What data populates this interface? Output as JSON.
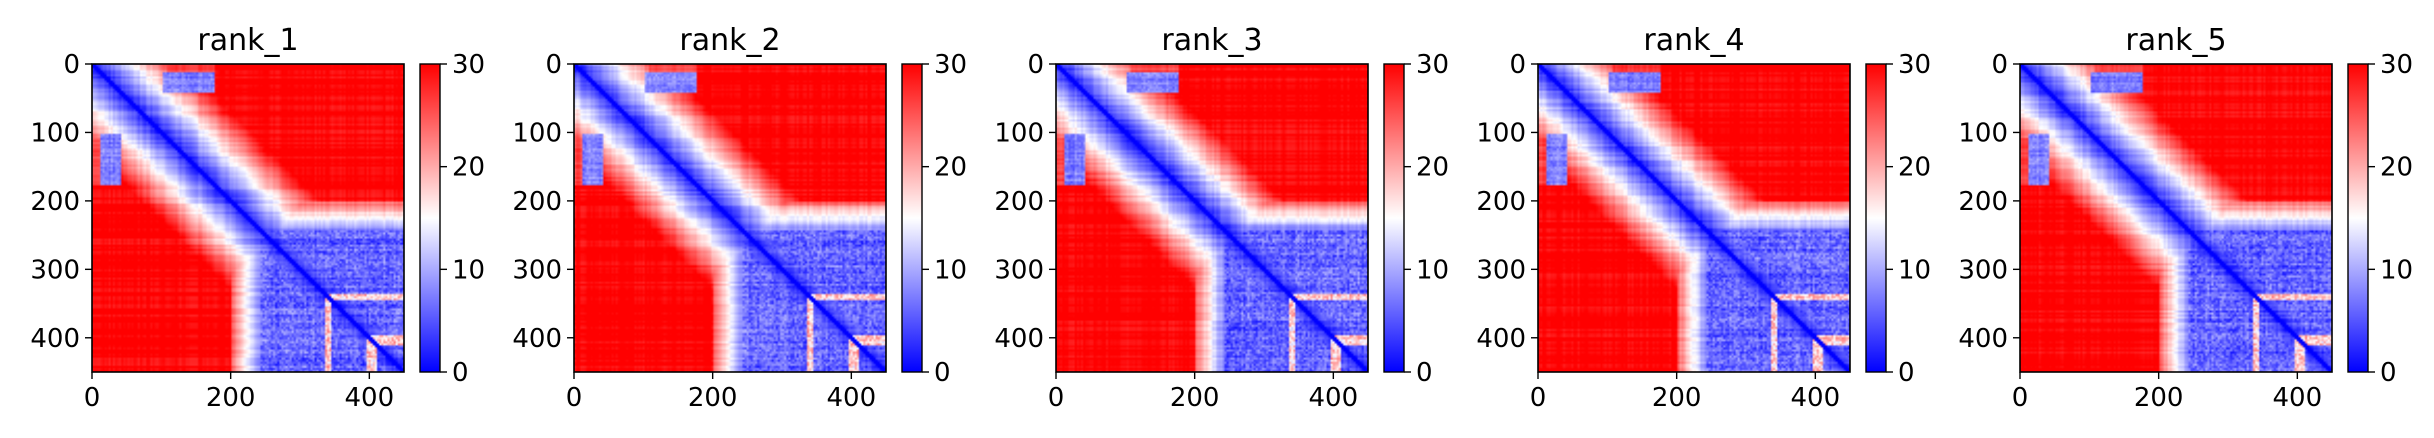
{
  "chart_data": [
    {
      "type": "heatmap",
      "title": "rank_1",
      "x_ticks": [
        0,
        200,
        400
      ],
      "y_ticks": [
        0,
        100,
        200,
        300,
        400
      ],
      "xlim": [
        0,
        450
      ],
      "ylim": [
        450,
        0
      ],
      "colorbar": {
        "ticks": [
          0,
          10,
          20,
          30
        ],
        "range": [
          0,
          30
        ],
        "colormap": "bwr"
      }
    },
    {
      "type": "heatmap",
      "title": "rank_2",
      "x_ticks": [
        0,
        200,
        400
      ],
      "y_ticks": [
        0,
        100,
        200,
        300,
        400
      ],
      "xlim": [
        0,
        450
      ],
      "ylim": [
        450,
        0
      ],
      "colorbar": {
        "ticks": [
          0,
          10,
          20,
          30
        ],
        "range": [
          0,
          30
        ],
        "colormap": "bwr"
      }
    },
    {
      "type": "heatmap",
      "title": "rank_3",
      "x_ticks": [
        0,
        200,
        400
      ],
      "y_ticks": [
        0,
        100,
        200,
        300,
        400
      ],
      "xlim": [
        0,
        450
      ],
      "ylim": [
        450,
        0
      ],
      "colorbar": {
        "ticks": [
          0,
          10,
          20,
          30
        ],
        "range": [
          0,
          30
        ],
        "colormap": "bwr"
      }
    },
    {
      "type": "heatmap",
      "title": "rank_4",
      "x_ticks": [
        0,
        200,
        400
      ],
      "y_ticks": [
        0,
        100,
        200,
        300,
        400
      ],
      "xlim": [
        0,
        450
      ],
      "ylim": [
        450,
        0
      ],
      "colorbar": {
        "ticks": [
          0,
          10,
          20,
          30
        ],
        "range": [
          0,
          30
        ],
        "colormap": "bwr"
      }
    },
    {
      "type": "heatmap",
      "title": "rank_5",
      "x_ticks": [
        0,
        200,
        400
      ],
      "y_ticks": [
        0,
        100,
        200,
        300,
        400
      ],
      "xlim": [
        0,
        450
      ],
      "ylim": [
        450,
        0
      ],
      "colorbar": {
        "ticks": [
          0,
          10,
          20,
          30
        ],
        "range": [
          0,
          30
        ],
        "colormap": "bwr"
      }
    }
  ],
  "colors": {
    "low": "#0000ff",
    "mid": "#ffffff",
    "high": "#ff0000"
  }
}
